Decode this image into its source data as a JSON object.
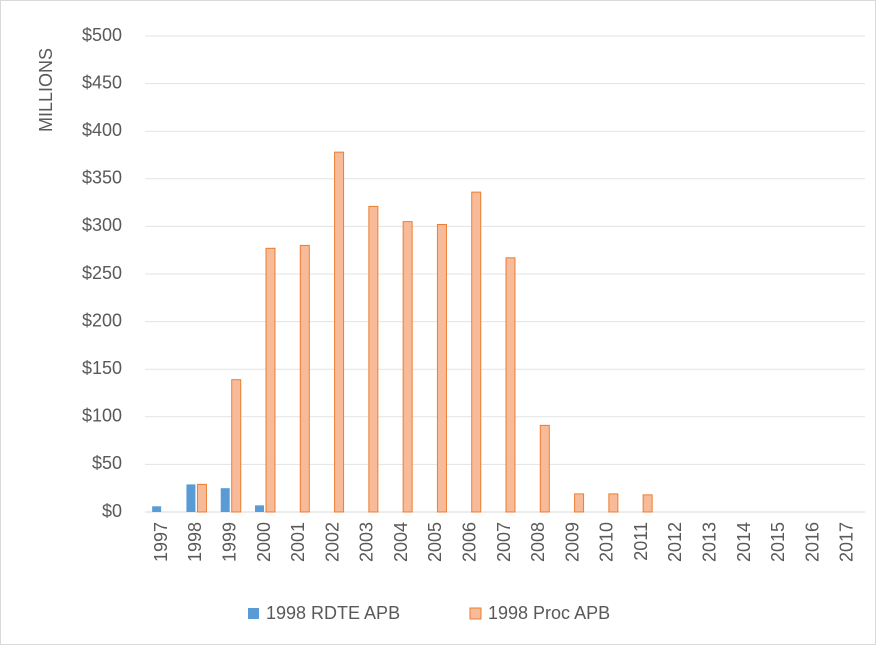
{
  "chart_data": {
    "type": "bar",
    "y_label": "MILLIONS",
    "categories": [
      "1997",
      "1998",
      "1999",
      "2000",
      "2001",
      "2002",
      "2003",
      "2004",
      "2005",
      "2006",
      "2007",
      "2008",
      "2009",
      "2010",
      "2011",
      "2012",
      "2013",
      "2014",
      "2015",
      "2016",
      "2017"
    ],
    "series": [
      {
        "name": "1998 RDTE APB",
        "color": "#5b9bd5",
        "values": [
          6,
          29,
          25,
          7,
          0,
          0,
          0,
          0,
          0,
          0,
          0,
          0,
          0,
          0,
          0,
          0,
          0,
          0,
          0,
          0,
          0
        ]
      },
      {
        "name": "1998 Proc APB",
        "color": "#f8bb99",
        "edge_color": "#ed7d31",
        "values": [
          0,
          29,
          139,
          277,
          280,
          378,
          321,
          305,
          302,
          336,
          267,
          91,
          19,
          19,
          18,
          0,
          0,
          0,
          0,
          0,
          0
        ]
      }
    ],
    "ylim": [
      0,
      500
    ],
    "yticks": [
      {
        "value": 0,
        "label": "$0"
      },
      {
        "value": 50,
        "label": "$50"
      },
      {
        "value": 100,
        "label": "$100"
      },
      {
        "value": 150,
        "label": "$150"
      },
      {
        "value": 200,
        "label": "$200"
      },
      {
        "value": 250,
        "label": "$250"
      },
      {
        "value": 300,
        "label": "$300"
      },
      {
        "value": 350,
        "label": "$350"
      },
      {
        "value": 400,
        "label": "$400"
      },
      {
        "value": 450,
        "label": "$450"
      },
      {
        "value": 500,
        "label": "$500"
      }
    ],
    "grid": true,
    "legend": "bottom"
  }
}
